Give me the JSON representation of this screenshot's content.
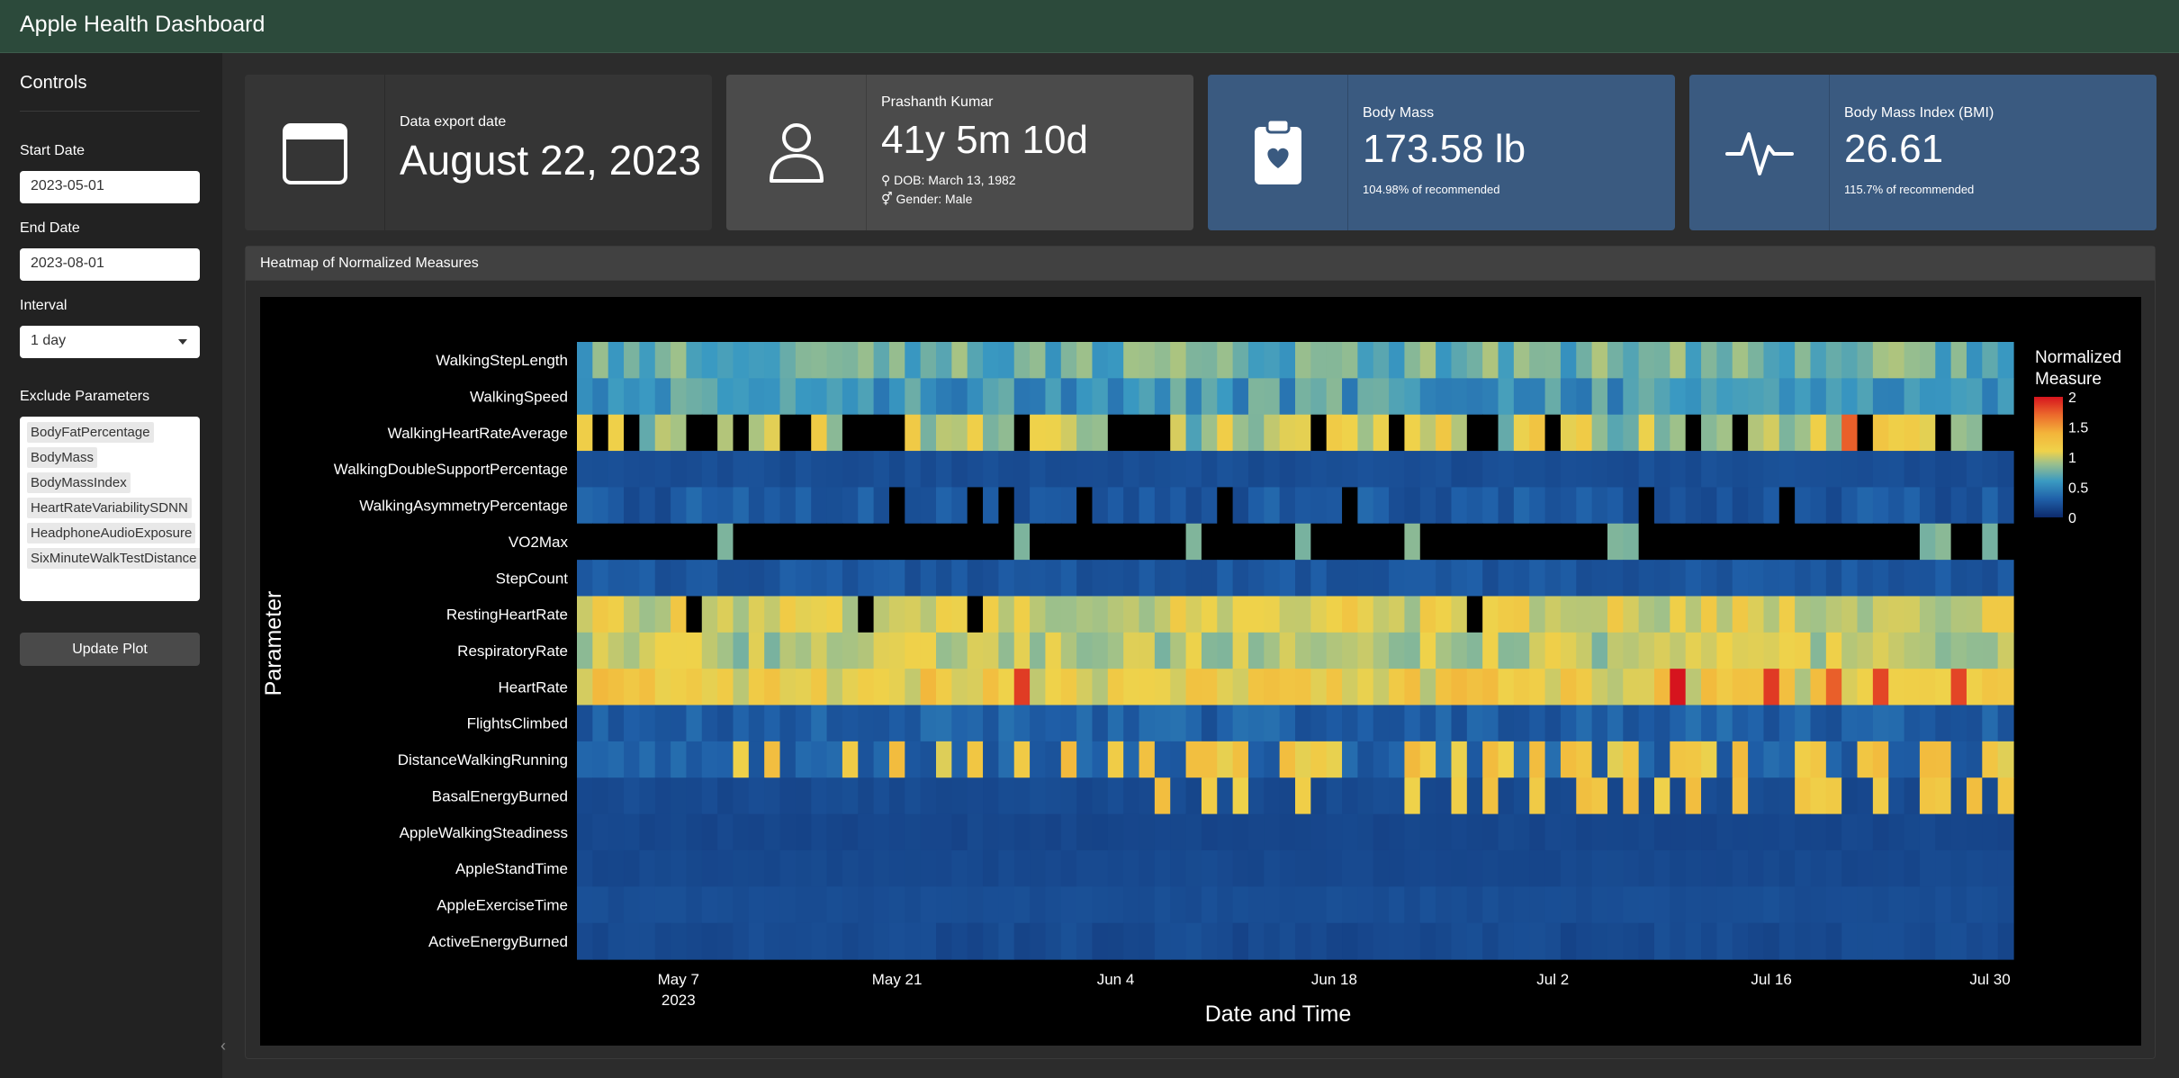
{
  "app": {
    "title": "Apple Health Dashboard"
  },
  "sidebar": {
    "heading": "Controls",
    "start_label": "Start Date",
    "start_value": "2023-05-01",
    "end_label": "End Date",
    "end_value": "2023-08-01",
    "interval_label": "Interval",
    "interval_value": "1 day",
    "exclude_label": "Exclude Parameters",
    "exclude_items": [
      "BodyFatPercentage",
      "BodyMass",
      "BodyMassIndex",
      "HeartRateVariabilitySDNN",
      "HeadphoneAudioExposure",
      "SixMinuteWalkTestDistance"
    ],
    "update_button": "Update Plot"
  },
  "value_boxes": [
    {
      "title": "Data export date",
      "value": "August 22, 2023",
      "icon": "calendar-icon"
    },
    {
      "title": "Prashanth Kumar",
      "value": "41y 5m 10d",
      "dob": "DOB: March 13, 1982",
      "gender": "Gender: Male",
      "icon": "person-icon"
    },
    {
      "title": "Body Mass",
      "value": "173.58 lb",
      "sub": "104.98% of recommended",
      "icon": "clipboard-heart-icon"
    },
    {
      "title": "Body Mass Index (BMI)",
      "value": "26.61",
      "sub": "115.7% of recommended",
      "icon": "pulse-icon"
    }
  ],
  "heatmap_card": {
    "title": "Heatmap of Normalized Measures"
  },
  "chart_data": {
    "type": "heatmap",
    "xlabel": "Date and Time",
    "ylabel": "Parameter",
    "colorbar_title": "Normalized Measure",
    "colorbar_ticks": [
      "0",
      "0.5",
      "1",
      "1.5",
      "2"
    ],
    "zlim": [
      0,
      2
    ],
    "x_ticks": [
      {
        "date": "2023-05-07",
        "label": "May 7",
        "sub": "2023"
      },
      {
        "date": "2023-05-21",
        "label": "May 21"
      },
      {
        "date": "2023-06-04",
        "label": "Jun 4"
      },
      {
        "date": "2023-06-18",
        "label": "Jun 18"
      },
      {
        "date": "2023-07-02",
        "label": "Jul 2"
      },
      {
        "date": "2023-07-16",
        "label": "Jul 16"
      },
      {
        "date": "2023-07-30",
        "label": "Jul 30"
      }
    ],
    "x_range": [
      "2023-05-01",
      "2023-07-31"
    ],
    "parameters": [
      "WalkingStepLength",
      "WalkingSpeed",
      "WalkingHeartRateAverage",
      "WalkingDoubleSupportPercentage",
      "WalkingAsymmetryPercentage",
      "VO2Max",
      "StepCount",
      "RestingHeartRate",
      "RespiratoryRate",
      "HeartRate",
      "FlightsClimbed",
      "DistanceWalkingRunning",
      "BasalEnergyBurned",
      "AppleWalkingSteadiness",
      "AppleStandTime",
      "AppleExerciseTime",
      "ActiveEnergyBurned"
    ],
    "rows": [
      {
        "base": 0.75,
        "var": 0.2,
        "missing": []
      },
      {
        "base": 0.62,
        "var": 0.22,
        "missing": []
      },
      {
        "base": 0.95,
        "var": 0.3,
        "missing": [
          1,
          3,
          7,
          8,
          10,
          13,
          14,
          17,
          18,
          19,
          20,
          28,
          34,
          35,
          36,
          37,
          47,
          52,
          57,
          58,
          62,
          71,
          74,
          82,
          87,
          90,
          91,
          94,
          101
        ],
        "high": [
          3,
          81
        ]
      },
      {
        "base": 0.2,
        "var": 0.03,
        "missing": []
      },
      {
        "base": 0.26,
        "var": 0.1,
        "missing": [
          20,
          25,
          27,
          32,
          41,
          49,
          68,
          77,
          93
        ]
      },
      {
        "base": 0.8,
        "var": 0.05,
        "missing": "all",
        "present": [
          9,
          28,
          39,
          46,
          53,
          66,
          67,
          86,
          87,
          90,
          97
        ]
      },
      {
        "base": 0.25,
        "var": 0.06,
        "missing": []
      },
      {
        "base": 1.05,
        "var": 0.18,
        "missing": [
          7,
          18,
          25,
          57
        ]
      },
      {
        "base": 0.95,
        "var": 0.18,
        "missing": []
      },
      {
        "base": 1.15,
        "var": 0.22,
        "missing": [],
        "high": [
          28,
          70,
          76,
          80,
          83,
          88
        ]
      },
      {
        "base": 0.3,
        "var": 0.1,
        "missing": []
      },
      {
        "base": 0.3,
        "var": 0.08,
        "missing": [],
        "tall": [
          10,
          12,
          17,
          20,
          23,
          25,
          28,
          31,
          34,
          36,
          39,
          40,
          41,
          42,
          45,
          46,
          47,
          48,
          53,
          54,
          56,
          58,
          59,
          61,
          63,
          64,
          66,
          67,
          70,
          71,
          72,
          74,
          78,
          79,
          82,
          83,
          86,
          87,
          90,
          91,
          94,
          95,
          97,
          98,
          99
        ]
      },
      {
        "base": 0.18,
        "var": 0.03,
        "missing": [],
        "tall": [
          37,
          40,
          42,
          46,
          53,
          56,
          58,
          61,
          64,
          65,
          67,
          69,
          71,
          74,
          78,
          79,
          80,
          83,
          86,
          87,
          89,
          91,
          94,
          97,
          98,
          99,
          100
        ]
      },
      {
        "base": 0.16,
        "var": 0.02,
        "missing": []
      },
      {
        "base": 0.17,
        "var": 0.02,
        "missing": []
      },
      {
        "base": 0.2,
        "var": 0.02,
        "missing": []
      },
      {
        "base": 0.18,
        "var": 0.04,
        "missing": []
      }
    ]
  }
}
